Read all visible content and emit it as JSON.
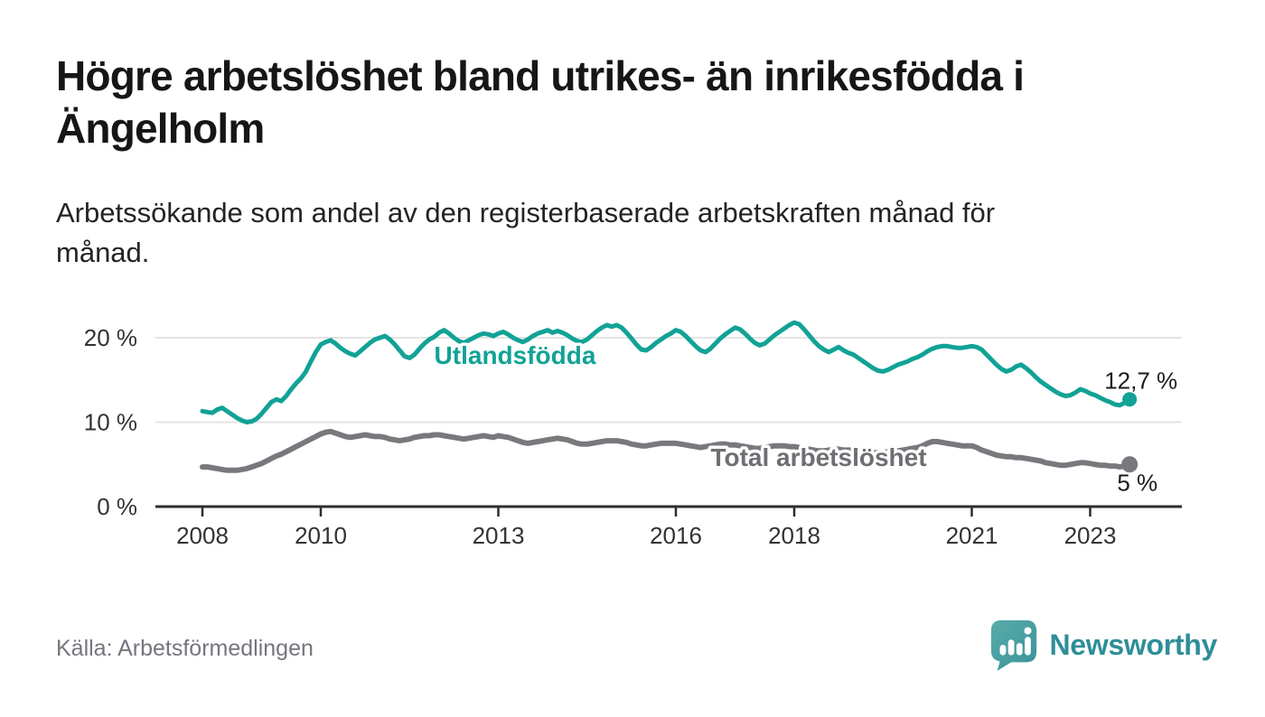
{
  "header": {
    "title": "Högre arbetslöshet bland utrikes- än inrikesfödda i Ängelholm",
    "subtitle": "Arbetssökande som andel av den registerbaserade arbetskraften månad för månad."
  },
  "chart_data": {
    "type": "line",
    "x_start": "2008-01",
    "x_end": "2023-09",
    "x_frequency": "monthly",
    "grid": "horizontal",
    "legend_position": "inline-labels",
    "ylim": [
      0,
      24
    ],
    "y_ticks": [
      {
        "value": 0,
        "label": "0 %"
      },
      {
        "value": 10,
        "label": "10 %"
      },
      {
        "value": 20,
        "label": "20 %"
      }
    ],
    "x_ticks": [
      {
        "year": 2008,
        "label": "2008"
      },
      {
        "year": 2010,
        "label": "2010"
      },
      {
        "year": 2013,
        "label": "2013"
      },
      {
        "year": 2016,
        "label": "2016"
      },
      {
        "year": 2018,
        "label": "2018"
      },
      {
        "year": 2021,
        "label": "2021"
      },
      {
        "year": 2023,
        "label": "2023"
      }
    ],
    "series": [
      {
        "id": "utlandsfodda",
        "name": "Utlandsfödda",
        "color": "#12A296",
        "label_color": "#12A296",
        "end_label": "12,7 %",
        "end_value": 12.7,
        "values": [
          11.3,
          11.2,
          11.1,
          11.5,
          11.7,
          11.3,
          10.9,
          10.5,
          10.2,
          10.0,
          10.1,
          10.4,
          11.0,
          11.7,
          12.4,
          12.7,
          12.5,
          13.1,
          13.9,
          14.6,
          15.2,
          16.0,
          17.2,
          18.3,
          19.2,
          19.5,
          19.7,
          19.3,
          18.8,
          18.4,
          18.1,
          17.9,
          18.4,
          18.9,
          19.4,
          19.8,
          20.0,
          20.2,
          19.8,
          19.2,
          18.5,
          17.8,
          17.6,
          18.0,
          18.7,
          19.3,
          19.8,
          20.1,
          20.6,
          20.9,
          20.5,
          20.0,
          19.6,
          19.4,
          19.7,
          20.0,
          20.3,
          20.5,
          20.4,
          20.2,
          20.5,
          20.7,
          20.4,
          20.0,
          19.7,
          19.5,
          19.8,
          20.2,
          20.5,
          20.7,
          20.9,
          20.6,
          20.8,
          20.6,
          20.3,
          19.9,
          19.6,
          19.5,
          19.8,
          20.3,
          20.8,
          21.2,
          21.5,
          21.3,
          21.5,
          21.2,
          20.6,
          19.9,
          19.2,
          18.6,
          18.5,
          18.9,
          19.4,
          19.8,
          20.2,
          20.5,
          20.9,
          20.7,
          20.2,
          19.6,
          19.0,
          18.5,
          18.3,
          18.7,
          19.3,
          19.9,
          20.4,
          20.8,
          21.2,
          21.0,
          20.5,
          19.9,
          19.4,
          19.1,
          19.3,
          19.8,
          20.3,
          20.7,
          21.1,
          21.5,
          21.8,
          21.6,
          21.0,
          20.3,
          19.6,
          19.0,
          18.6,
          18.3,
          18.6,
          18.9,
          18.5,
          18.2,
          18.0,
          17.6,
          17.2,
          16.8,
          16.4,
          16.1,
          16.0,
          16.2,
          16.5,
          16.8,
          17.0,
          17.2,
          17.5,
          17.7,
          18.0,
          18.4,
          18.7,
          18.9,
          19.0,
          19.0,
          18.9,
          18.8,
          18.8,
          18.9,
          19.0,
          18.9,
          18.6,
          18.0,
          17.4,
          16.8,
          16.3,
          16.0,
          16.2,
          16.6,
          16.8,
          16.4,
          15.9,
          15.3,
          14.8,
          14.4,
          14.0,
          13.6,
          13.3,
          13.1,
          13.2,
          13.5,
          13.9,
          13.7,
          13.4,
          13.2,
          12.9,
          12.6,
          12.4,
          12.1,
          12.0,
          12.3,
          12.7
        ]
      },
      {
        "id": "total-arbetsloshet",
        "name": "Total arbetslöshet",
        "color": "#78787D",
        "label_color": "#6E6E73",
        "end_label": "5 %",
        "end_value": 5.0,
        "values": [
          4.7,
          4.7,
          4.6,
          4.5,
          4.4,
          4.3,
          4.3,
          4.3,
          4.4,
          4.5,
          4.7,
          4.9,
          5.1,
          5.4,
          5.7,
          6.0,
          6.2,
          6.5,
          6.8,
          7.1,
          7.4,
          7.7,
          8.0,
          8.3,
          8.6,
          8.8,
          8.9,
          8.7,
          8.5,
          8.3,
          8.2,
          8.3,
          8.4,
          8.5,
          8.4,
          8.3,
          8.3,
          8.2,
          8.0,
          7.9,
          7.8,
          7.9,
          8.0,
          8.2,
          8.3,
          8.4,
          8.4,
          8.5,
          8.5,
          8.4,
          8.3,
          8.2,
          8.1,
          8.0,
          8.1,
          8.2,
          8.3,
          8.4,
          8.3,
          8.2,
          8.4,
          8.3,
          8.2,
          8.0,
          7.8,
          7.6,
          7.5,
          7.6,
          7.7,
          7.8,
          7.9,
          8.0,
          8.1,
          8.0,
          7.9,
          7.7,
          7.5,
          7.4,
          7.4,
          7.5,
          7.6,
          7.7,
          7.8,
          7.8,
          7.8,
          7.7,
          7.6,
          7.4,
          7.3,
          7.2,
          7.2,
          7.3,
          7.4,
          7.5,
          7.5,
          7.5,
          7.5,
          7.4,
          7.3,
          7.2,
          7.1,
          7.0,
          7.1,
          7.2,
          7.3,
          7.4,
          7.4,
          7.3,
          7.3,
          7.2,
          7.1,
          7.0,
          6.9,
          6.9,
          7.0,
          7.1,
          7.2,
          7.2,
          7.2,
          7.1,
          7.1,
          7.0,
          6.9,
          6.8,
          6.7,
          6.6,
          6.6,
          6.7,
          6.8,
          6.8,
          6.7,
          6.7,
          6.7,
          6.6,
          6.5,
          6.5,
          6.4,
          6.4,
          6.4,
          6.5,
          6.6,
          6.6,
          6.7,
          6.8,
          6.9,
          7.0,
          7.2,
          7.5,
          7.7,
          7.7,
          7.6,
          7.5,
          7.4,
          7.3,
          7.2,
          7.2,
          7.2,
          7.0,
          6.7,
          6.5,
          6.3,
          6.1,
          6.0,
          5.9,
          5.9,
          5.8,
          5.8,
          5.7,
          5.6,
          5.5,
          5.4,
          5.2,
          5.1,
          5.0,
          4.9,
          4.9,
          5.0,
          5.1,
          5.2,
          5.2,
          5.1,
          5.0,
          4.9,
          4.9,
          4.8,
          4.8,
          4.7,
          4.8,
          5.0
        ]
      }
    ]
  },
  "footer": {
    "source": "Källa: Arbetsförmedlingen",
    "brand": "Newsworthy"
  },
  "colors": {
    "accent_teal": "#12A296",
    "series_gray": "#78787D",
    "axis": "#2D2D2D",
    "gridline": "#E4E4E4",
    "tick_text": "#333333",
    "source_text": "#75757E",
    "brand_teal": "#2E8E98"
  },
  "icons": {
    "brand_icon": "newsworthy-speech-bubble-barchart-icon"
  }
}
